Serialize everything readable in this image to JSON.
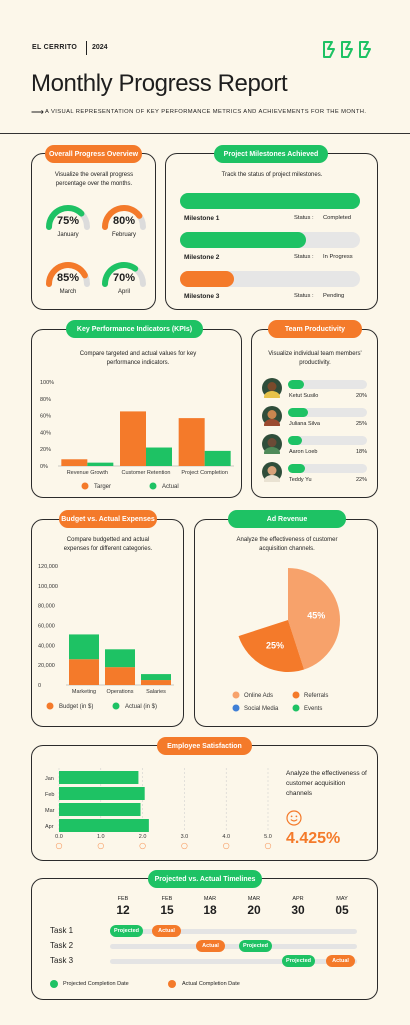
{
  "header": {
    "brand": "EL CERRITO",
    "year": "2024",
    "title": "Monthly Progress Report",
    "subtitle": "A VISUAL REPRESENTATION OF KEY PERFORMANCE METRICS AND ACHIEVEMENTS FOR THE MONTH.",
    "arrow": "⟶"
  },
  "colors": {
    "orange": "#f47a2a",
    "green": "#1ec264",
    "gray": "#e6e6e6",
    "bg": "#fcf7ea"
  },
  "overall": {
    "title": "Overall Progress Overview",
    "desc": "Visualize the overall progress percentage over the months.",
    "gauges": [
      {
        "pct": "75%",
        "month": "January",
        "value": 75,
        "color": "green"
      },
      {
        "pct": "80%",
        "month": "February",
        "value": 80,
        "color": "orange"
      },
      {
        "pct": "85%",
        "month": "March",
        "value": 85,
        "color": "orange"
      },
      {
        "pct": "70%",
        "month": "April",
        "value": 70,
        "color": "green"
      }
    ]
  },
  "milestones": {
    "title": "Project Milestones Achieved",
    "desc": "Track the status of project milestones.",
    "status_label": "Status :",
    "items": [
      {
        "name": "Milestone 1",
        "status": "Completed",
        "progress": 1.0,
        "color": "green"
      },
      {
        "name": "Milestone 2",
        "status": "In Progress",
        "progress": 0.7,
        "color": "green"
      },
      {
        "name": "Milestone 3",
        "status": "Pending",
        "progress": 0.3,
        "color": "orange"
      }
    ]
  },
  "chart_data": [
    {
      "type": "bar",
      "title": "Key Performance Indicators (KPIs)",
      "desc": "Compare targeted and actual values for key performance indicators.",
      "categories": [
        "Revenue Growth",
        "Customer Retention",
        "Project Completion"
      ],
      "yticks": [
        "100%",
        "80%",
        "60%",
        "40%",
        "20%",
        "0%"
      ],
      "ylim": [
        0,
        100
      ],
      "series": [
        {
          "name": "Targer",
          "values": [
            8,
            65,
            57
          ],
          "color": "#f47a2a"
        },
        {
          "name": "Actual",
          "values": [
            4,
            22,
            18
          ],
          "color": "#1ec264"
        }
      ],
      "legend": "bottom"
    },
    {
      "type": "bar",
      "title": "Budget vs. Actual Expenses",
      "desc": "Compare budgetted and actual expenses for different categories.",
      "categories": [
        "Marketing",
        "Operations",
        "Salaries"
      ],
      "yticks": [
        "120,000",
        "100,000",
        "80,000",
        "60,000",
        "40,000",
        "20,000",
        "0"
      ],
      "ylim": [
        0,
        120000
      ],
      "stacked": true,
      "series": [
        {
          "name": "Budget (in $)",
          "values": [
            26000,
            18000,
            5000
          ],
          "color": "#f47a2a"
        },
        {
          "name": "Actual (in $)",
          "values": [
            25000,
            18000,
            6000
          ],
          "color": "#1ec264"
        }
      ],
      "legend": "bottom"
    },
    {
      "type": "pie",
      "title": "Ad Revenue",
      "desc": "Analyze the effectiveness of customer acquisition channels.",
      "slices": [
        {
          "name": "Online Ads",
          "value": 45,
          "label": "45%",
          "color": "#f7a26b"
        },
        {
          "name": "Referrals",
          "value": 25,
          "label": "25%",
          "color": "#f47a2a"
        },
        {
          "name": "Social Media",
          "value": 0,
          "color": "#3f7fd6"
        },
        {
          "name": "Events",
          "value": 0,
          "color": "#1ec264"
        }
      ],
      "legend": "bottom"
    },
    {
      "type": "bar",
      "orientation": "horizontal",
      "title": "Employee Satisfaction",
      "categories": [
        "Jan",
        "Feb",
        "Mar",
        "Apr"
      ],
      "values": [
        1.9,
        2.05,
        1.95,
        2.15
      ],
      "xticks": [
        "0.0",
        "1.0",
        "2.0",
        "3.0",
        "4.0",
        "5.0"
      ],
      "xlim": [
        0,
        5
      ]
    }
  ],
  "productivity": {
    "title": "Team Productivity",
    "desc": "Visualize individual team members' productivity.",
    "members": [
      {
        "name": "Ketut Susilo",
        "pct": "20%",
        "value": 0.2,
        "skin": "#7a4a2b",
        "shirt": "#e7c24a"
      },
      {
        "name": "Juliana Silva",
        "pct": "25%",
        "value": 0.25,
        "skin": "#c8864f",
        "shirt": "#9b4a2f"
      },
      {
        "name": "Aaron Loeb",
        "pct": "18%",
        "value": 0.18,
        "skin": "#6b4a36",
        "shirt": "#4f8a59"
      },
      {
        "name": "Teddy Yu",
        "pct": "22%",
        "value": 0.22,
        "skin": "#d8a27a",
        "shirt": "#e9e2d2"
      }
    ]
  },
  "satisfaction": {
    "side_text": "Analyze the effectiveness of customer acquisition channels",
    "value": "4.425%"
  },
  "timeline": {
    "title": "Projected vs. Actual Timelines",
    "dates": [
      {
        "month": "FEB",
        "day": "12"
      },
      {
        "month": "FEB",
        "day": "15"
      },
      {
        "month": "MAR",
        "day": "18"
      },
      {
        "month": "MAR",
        "day": "20"
      },
      {
        "month": "APR",
        "day": "30"
      },
      {
        "month": "MAY",
        "day": "05"
      }
    ],
    "tasks": [
      {
        "name": "Task 1",
        "projected": "Projected",
        "actual": "Actual"
      },
      {
        "name": "Task 2",
        "projected": "Projected",
        "actual": "Actual"
      },
      {
        "name": "Task 3",
        "projected": "Projected",
        "actual": "Actual"
      }
    ],
    "legend_projected": "Projected Completion Date",
    "legend_actual": "Actual Completion Date"
  }
}
